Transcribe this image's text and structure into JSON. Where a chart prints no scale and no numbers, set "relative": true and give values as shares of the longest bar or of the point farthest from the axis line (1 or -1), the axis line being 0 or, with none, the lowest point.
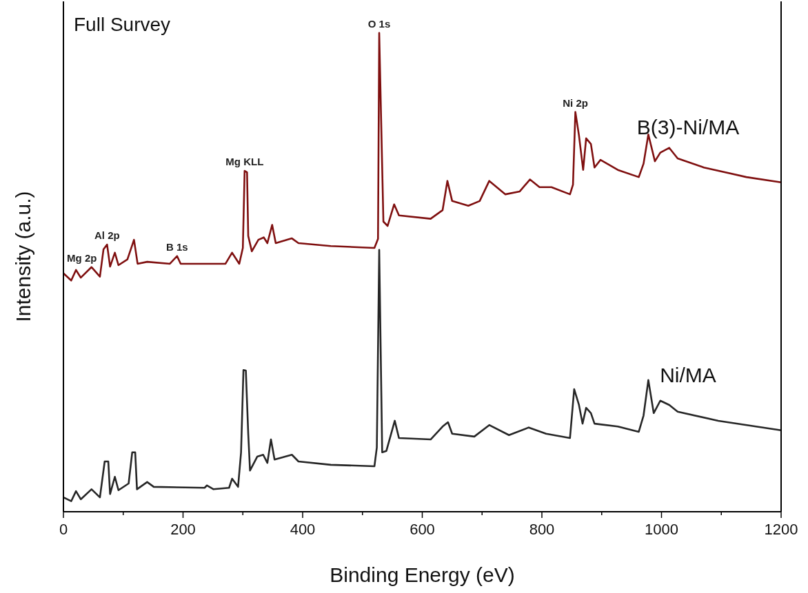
{
  "chart_data": {
    "type": "line",
    "relative": true,
    "legend": false,
    "grid": false,
    "marker": "none",
    "line_style": "solid",
    "xlabel": "Binding Energy (eV)",
    "ylabel": "Intensity (a.u.)",
    "xlim": [
      0,
      1200
    ],
    "xticks": [
      0,
      {
        "value": 100,
        "label": null
      },
      200,
      {
        "value": 300,
        "label": null
      },
      400,
      {
        "value": 500,
        "label": null
      },
      600,
      {
        "value": 700,
        "label": null
      },
      800,
      {
        "value": 900,
        "label": null
      },
      1000,
      {
        "value": 1100,
        "label": null
      },
      1200
    ],
    "tick_labels": "x",
    "annotations": [
      "Full Survey",
      {
        "text": "Mg 2p",
        "x": 47,
        "y": 0.511
      },
      {
        "text": "Al 2p",
        "x": 73,
        "y": 0.558
      },
      {
        "text": "B 1s",
        "x": 190,
        "y": 0.534
      },
      {
        "text": "Mg KLL",
        "x": 303,
        "y": 0.712
      },
      {
        "text": "O 1s",
        "x": 528,
        "y": 1
      },
      {
        "text": "Ni 2p",
        "x": 856,
        "y": 0.835
      }
    ],
    "series": [
      {
        "name": "B(3)-Ni/MA",
        "color": "#7f0f0f",
        "x": [
          0,
          13,
          21,
          29,
          47,
          61,
          67,
          73,
          78,
          86,
          92,
          107,
          118,
          124,
          140,
          178,
          190,
          196,
          240,
          271,
          282,
          294,
          300,
          303,
          307,
          309,
          315,
          326,
          335,
          341,
          349,
          355,
          382,
          393,
          447,
          520,
          526,
          528,
          535,
          542,
          553,
          561,
          614,
          634,
          642,
          650,
          677,
          696,
          712,
          739,
          763,
          780,
          796,
          816,
          847,
          852,
          856,
          862,
          869,
          874,
          882,
          888,
          898,
          927,
          962,
          970,
          978,
          989,
          998,
          1013,
          1027,
          1071,
          1142,
          1200
        ],
        "values": [
          0.498,
          0.483,
          0.505,
          0.489,
          0.511,
          0.491,
          0.548,
          0.558,
          0.512,
          0.541,
          0.515,
          0.527,
          0.568,
          0.518,
          0.522,
          0.518,
          0.534,
          0.518,
          0.518,
          0.518,
          0.541,
          0.518,
          0.551,
          0.712,
          0.709,
          0.576,
          0.544,
          0.568,
          0.573,
          0.561,
          0.599,
          0.561,
          0.571,
          0.561,
          0.555,
          0.551,
          0.57,
          1,
          0.606,
          0.597,
          0.642,
          0.619,
          0.612,
          0.63,
          0.691,
          0.649,
          0.639,
          0.649,
          0.691,
          0.663,
          0.669,
          0.694,
          0.678,
          0.678,
          0.663,
          0.683,
          0.835,
          0.786,
          0.714,
          0.78,
          0.768,
          0.719,
          0.735,
          0.714,
          0.699,
          0.727,
          0.788,
          0.732,
          0.75,
          0.76,
          0.738,
          0.719,
          0.699,
          0.688
        ]
      },
      {
        "name": "Ni/MA",
        "color": "#262626",
        "x": [
          0,
          13,
          21,
          29,
          47,
          61,
          69,
          75,
          78,
          86,
          92,
          109,
          115,
          120,
          123,
          140,
          151,
          236,
          240,
          251,
          277,
          282,
          292,
          297,
          301,
          305,
          309,
          312,
          324,
          334,
          341,
          347,
          353,
          382,
          393,
          447,
          520,
          524,
          528,
          533,
          540,
          554,
          561,
          614,
          634,
          643,
          650,
          687,
          712,
          745,
          778,
          807,
          847,
          854,
          862,
          868,
          874,
          882,
          888,
          927,
          962,
          970,
          978,
          987,
          998,
          1013,
          1027,
          1095,
          1200
        ],
        "values": [
          0.03,
          0.022,
          0.043,
          0.026,
          0.047,
          0.03,
          0.105,
          0.105,
          0.037,
          0.073,
          0.045,
          0.059,
          0.124,
          0.124,
          0.047,
          0.062,
          0.052,
          0.05,
          0.055,
          0.047,
          0.05,
          0.069,
          0.052,
          0.124,
          0.296,
          0.295,
          0.163,
          0.086,
          0.115,
          0.119,
          0.102,
          0.151,
          0.109,
          0.119,
          0.105,
          0.098,
          0.095,
          0.134,
          0.547,
          0.124,
          0.127,
          0.19,
          0.154,
          0.151,
          0.178,
          0.187,
          0.163,
          0.157,
          0.181,
          0.16,
          0.176,
          0.163,
          0.154,
          0.256,
          0.223,
          0.184,
          0.217,
          0.206,
          0.184,
          0.178,
          0.167,
          0.201,
          0.275,
          0.206,
          0.232,
          0.223,
          0.209,
          0.19,
          0.17
        ]
      }
    ]
  }
}
